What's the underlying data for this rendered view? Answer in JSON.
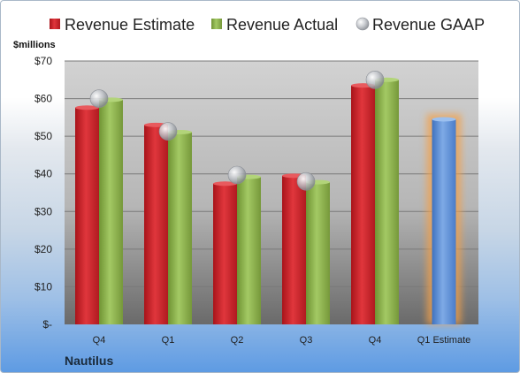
{
  "chart_data": {
    "type": "bar",
    "categories": [
      "Q4",
      "Q1",
      "Q2",
      "Q3",
      "Q4",
      "Q1 Estimate"
    ],
    "series": [
      {
        "name": "Revenue Estimate",
        "values": [
          57.6,
          53.0,
          37.4,
          39.5,
          63.5,
          null
        ],
        "color": "#cc2228"
      },
      {
        "name": "Revenue Actual",
        "values": [
          59.7,
          51.1,
          39.2,
          37.8,
          65.0,
          null
        ],
        "color": "#8cb24a"
      },
      {
        "name": "Revenue GAAP",
        "values": [
          60.0,
          51.3,
          39.7,
          38.0,
          65.0,
          null
        ],
        "color": "#b0b4bc"
      }
    ],
    "forecast": {
      "category": "Q1 Estimate",
      "value": 54.5,
      "color": "#5b8fd6",
      "glow": "#f3a04a"
    },
    "y_unit": "$millions",
    "yticks": [
      "$-",
      "$10",
      "$20",
      "$30",
      "$40",
      "$50",
      "$60",
      "$70"
    ],
    "ylim": [
      0,
      70
    ],
    "legend": "top",
    "grid": true,
    "company": "Nautilus"
  }
}
